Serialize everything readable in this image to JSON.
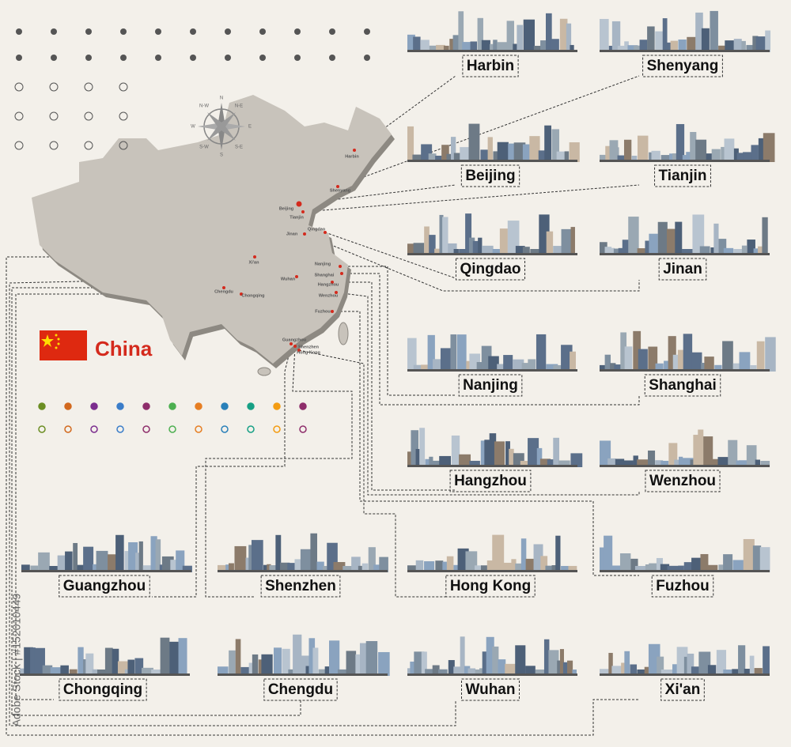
{
  "map": {
    "country": "China",
    "compass": [
      "N",
      "N-E",
      "E",
      "S-E",
      "S",
      "S-W",
      "W",
      "N-W"
    ],
    "cities": [
      "Harbin",
      "Shenyang",
      "Beijing",
      "Tianjin",
      "Qingdao",
      "Jinan",
      "Xi'an",
      "Nanjing",
      "Shanghai",
      "Wuhan",
      "Hangzhou",
      "Chengdu",
      "Chongqing",
      "Wenzhou",
      "Fuzhou",
      "Guangzhou",
      "Shenzhen",
      "Hong Kong"
    ]
  },
  "skylines": [
    "Harbin",
    "Shenyang",
    "Beijing",
    "Tianjin",
    "Qingdao",
    "Jinan",
    "Nanjing",
    "Shanghai",
    "Hangzhou",
    "Wenzhou",
    "Guangzhou",
    "Shenzhen",
    "Hong Kong",
    "Fuzhou",
    "Chongqing",
    "Chengdu",
    "Wuhan",
    "Xi'an"
  ],
  "watermark": "Adobe Stock | #152010449"
}
